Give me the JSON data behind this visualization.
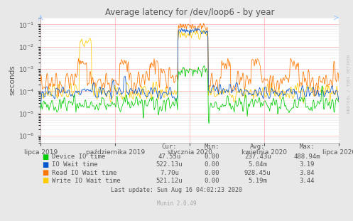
{
  "title": "Average latency for /dev/loop6 - by year",
  "ylabel": "seconds",
  "background_color": "#e8e8e8",
  "plot_bg_color": "#ffffff",
  "grid_color_major": "#ffaaaa",
  "grid_color_minor": "#dddddd",
  "series": {
    "device_io": {
      "label": "Device IO time",
      "color": "#00cc00"
    },
    "io_wait": {
      "label": "IO Wait time",
      "color": "#0055cc"
    },
    "read_io": {
      "label": "Read IO Wait time",
      "color": "#ff7700"
    },
    "write_io": {
      "label": "Write IO Wait time",
      "color": "#ffcc00"
    }
  },
  "xtick_labels": [
    "lipca 2019",
    "października 2019",
    "stycznia 2020",
    "kwietnia 2020",
    "lipca 2020"
  ],
  "xtick_positions": [
    0.0,
    0.25,
    0.5,
    0.75,
    1.0
  ],
  "legend_data": [
    {
      "label": "Device IO time",
      "color": "#00cc00",
      "cur": "47.55u",
      "min": "0.00",
      "avg": "237.43u",
      "max": "488.94m"
    },
    {
      "label": "IO Wait time",
      "color": "#0055cc",
      "cur": "522.13u",
      "min": "0.00",
      "avg": "5.04m",
      "max": "3.19"
    },
    {
      "label": "Read IO Wait time",
      "color": "#ff7700",
      "cur": "7.70u",
      "min": "0.00",
      "avg": "928.45u",
      "max": "3.84"
    },
    {
      "label": "Write IO Wait time",
      "color": "#ffcc00",
      "cur": "521.12u",
      "min": "0.00",
      "avg": "5.19m",
      "max": "3.44"
    }
  ],
  "footer": "Last update: Sun Aug 16 04:02:23 2020",
  "munin_label": "Munin 2.0.49",
  "rrdtool_label": "RRDTOOL / TOBI OETIKER",
  "title_color": "#555555",
  "font_color": "#555555",
  "ylim_low": 5e-07,
  "ylim_high": 0.2
}
